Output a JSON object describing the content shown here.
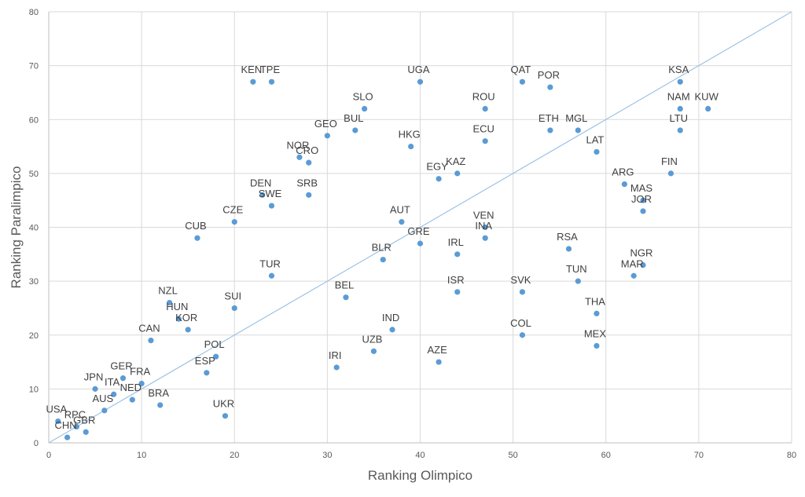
{
  "chart_data": {
    "type": "scatter",
    "title": "",
    "xlabel": "Ranking Olimpico",
    "ylabel": "Ranking Paralimpico",
    "xlim": [
      0,
      80
    ],
    "ylim": [
      0,
      80
    ],
    "xticks": [
      0,
      10,
      20,
      30,
      40,
      50,
      60,
      70,
      80
    ],
    "yticks": [
      0,
      10,
      20,
      30,
      40,
      50,
      60,
      70,
      80
    ],
    "grid": true,
    "legend": "none",
    "point_color": "#5b9bd5",
    "reference_line": {
      "from": [
        0,
        0
      ],
      "to": [
        80,
        80
      ],
      "color": "#9dc3e6"
    },
    "points": [
      {
        "label": "USA",
        "x": 1,
        "y": 4
      },
      {
        "label": "CHN",
        "x": 2,
        "y": 1
      },
      {
        "label": "RPC",
        "x": 3,
        "y": 3
      },
      {
        "label": "GBR",
        "x": 4,
        "y": 2
      },
      {
        "label": "JPN",
        "x": 5,
        "y": 10
      },
      {
        "label": "AUS",
        "x": 6,
        "y": 6
      },
      {
        "label": "ITA",
        "x": 7,
        "y": 9
      },
      {
        "label": "GER",
        "x": 8,
        "y": 12
      },
      {
        "label": "NED",
        "x": 9,
        "y": 8
      },
      {
        "label": "FRA",
        "x": 10,
        "y": 11
      },
      {
        "label": "CAN",
        "x": 11,
        "y": 19
      },
      {
        "label": "BRA",
        "x": 12,
        "y": 7
      },
      {
        "label": "NZL",
        "x": 13,
        "y": 26
      },
      {
        "label": "HUN",
        "x": 14,
        "y": 23
      },
      {
        "label": "KOR",
        "x": 15,
        "y": 21
      },
      {
        "label": "CUB",
        "x": 16,
        "y": 38
      },
      {
        "label": "ESP",
        "x": 17,
        "y": 13
      },
      {
        "label": "POL",
        "x": 18,
        "y": 16
      },
      {
        "label": "UKR",
        "x": 19,
        "y": 5
      },
      {
        "label": "CZE",
        "x": 20,
        "y": 41
      },
      {
        "label": "SUI",
        "x": 20,
        "y": 25
      },
      {
        "label": "KEN",
        "x": 22,
        "y": 67
      },
      {
        "label": "DEN",
        "x": 23,
        "y": 46
      },
      {
        "label": "TPE",
        "x": 24,
        "y": 67
      },
      {
        "label": "SWE",
        "x": 24,
        "y": 44
      },
      {
        "label": "TUR",
        "x": 24,
        "y": 31
      },
      {
        "label": "NOR",
        "x": 27,
        "y": 53
      },
      {
        "label": "CRO",
        "x": 28,
        "y": 52
      },
      {
        "label": "SRB",
        "x": 28,
        "y": 46
      },
      {
        "label": "GEO",
        "x": 30,
        "y": 57
      },
      {
        "label": "IRI",
        "x": 31,
        "y": 14
      },
      {
        "label": "BEL",
        "x": 32,
        "y": 27
      },
      {
        "label": "BUL",
        "x": 33,
        "y": 58
      },
      {
        "label": "SLO",
        "x": 34,
        "y": 62
      },
      {
        "label": "UZB",
        "x": 35,
        "y": 17
      },
      {
        "label": "BLR",
        "x": 36,
        "y": 34
      },
      {
        "label": "IND",
        "x": 37,
        "y": 21
      },
      {
        "label": "AUT",
        "x": 38,
        "y": 41
      },
      {
        "label": "HKG",
        "x": 39,
        "y": 55
      },
      {
        "label": "UGA",
        "x": 40,
        "y": 67
      },
      {
        "label": "GRE",
        "x": 40,
        "y": 37
      },
      {
        "label": "EGY",
        "x": 42,
        "y": 49
      },
      {
        "label": "AZE",
        "x": 42,
        "y": 15
      },
      {
        "label": "KAZ",
        "x": 44,
        "y": 50
      },
      {
        "label": "IRL",
        "x": 44,
        "y": 35
      },
      {
        "label": "ISR",
        "x": 44,
        "y": 28
      },
      {
        "label": "ROU",
        "x": 47,
        "y": 62
      },
      {
        "label": "ECU",
        "x": 47,
        "y": 56
      },
      {
        "label": "VEN",
        "x": 47,
        "y": 40
      },
      {
        "label": "INA",
        "x": 47,
        "y": 38
      },
      {
        "label": "QAT",
        "x": 51,
        "y": 67
      },
      {
        "label": "SVK",
        "x": 51,
        "y": 28
      },
      {
        "label": "COL",
        "x": 51,
        "y": 20
      },
      {
        "label": "POR",
        "x": 54,
        "y": 66
      },
      {
        "label": "ETH",
        "x": 54,
        "y": 58
      },
      {
        "label": "RSA",
        "x": 56,
        "y": 36
      },
      {
        "label": "MGL",
        "x": 57,
        "y": 58
      },
      {
        "label": "TUN",
        "x": 57,
        "y": 30
      },
      {
        "label": "LAT",
        "x": 59,
        "y": 54
      },
      {
        "label": "THA",
        "x": 59,
        "y": 24
      },
      {
        "label": "MEX",
        "x": 59,
        "y": 18
      },
      {
        "label": "ARG",
        "x": 62,
        "y": 48
      },
      {
        "label": "MAR",
        "x": 63,
        "y": 31
      },
      {
        "label": "MAS",
        "x": 64,
        "y": 45
      },
      {
        "label": "JOR",
        "x": 64,
        "y": 43
      },
      {
        "label": "NGR",
        "x": 64,
        "y": 33
      },
      {
        "label": "FIN",
        "x": 67,
        "y": 50
      },
      {
        "label": "KSA",
        "x": 68,
        "y": 67
      },
      {
        "label": "NAM",
        "x": 68,
        "y": 62
      },
      {
        "label": "LTU",
        "x": 68,
        "y": 58
      },
      {
        "label": "KUW",
        "x": 71,
        "y": 62
      }
    ]
  }
}
